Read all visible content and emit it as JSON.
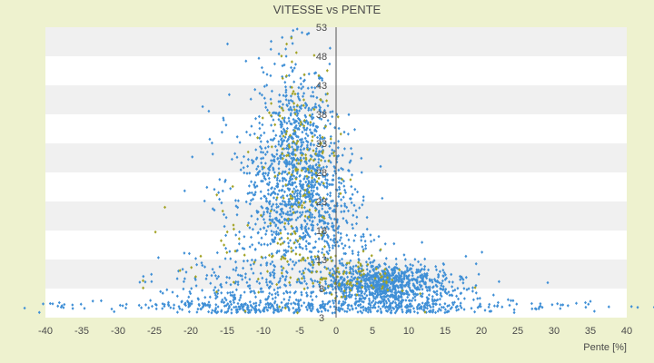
{
  "chart_data": {
    "type": "scatter",
    "title": "VITESSE vs PENTE",
    "xlabel": "Pente [%]",
    "ylabel": "",
    "xlim": [
      -40,
      40
    ],
    "ylim": [
      3,
      53
    ],
    "x_ticks": [
      -40,
      -35,
      -30,
      -25,
      -20,
      -15,
      -10,
      -5,
      0,
      5,
      10,
      15,
      20,
      25,
      30,
      35,
      40
    ],
    "y_ticks": [
      3,
      8,
      13,
      18,
      23,
      28,
      33,
      38,
      43,
      48,
      53
    ],
    "grid": "alternating horizontal bands",
    "legend": "none",
    "series": [
      {
        "color": "#3f8fd6",
        "marker": "diamond",
        "values_note": "density clusters, approximate",
        "clusters": [
          {
            "x_center": -6,
            "y_center": 31,
            "x_spread": 2.5,
            "y_spread": 9,
            "count": 650
          },
          {
            "x_center": -8,
            "y_center": 22,
            "x_spread": 4.5,
            "y_spread": 8,
            "count": 400
          },
          {
            "x_center": -2,
            "y_center": 24,
            "x_spread": 2.5,
            "y_spread": 7,
            "count": 250
          },
          {
            "x_center": 6,
            "y_center": 9,
            "x_spread": 3.5,
            "y_spread": 1.6,
            "count": 650
          },
          {
            "x_center": 10,
            "y_center": 7,
            "x_spread": 5,
            "y_spread": 2.5,
            "count": 350
          },
          {
            "x_center": -12,
            "y_center": 7,
            "x_spread": 6,
            "y_spread": 3,
            "count": 300
          },
          {
            "x_center": 1,
            "y_center": 16,
            "x_spread": 3,
            "y_spread": 6,
            "count": 150
          },
          {
            "x_center": 0,
            "y_center": 5,
            "x_spread": 18,
            "y_spread": 0.4,
            "count": 300
          }
        ]
      },
      {
        "color": "#a3a326",
        "marker": "diamond",
        "values_note": "density clusters, approximate",
        "clusters": [
          {
            "x_center": -5,
            "y_center": 30,
            "x_spread": 2.5,
            "y_spread": 9,
            "count": 160
          },
          {
            "x_center": 2,
            "y_center": 10,
            "x_spread": 4,
            "y_spread": 2,
            "count": 90
          },
          {
            "x_center": -10,
            "y_center": 14,
            "x_spread": 6,
            "y_spread": 5,
            "count": 60
          }
        ]
      }
    ]
  }
}
